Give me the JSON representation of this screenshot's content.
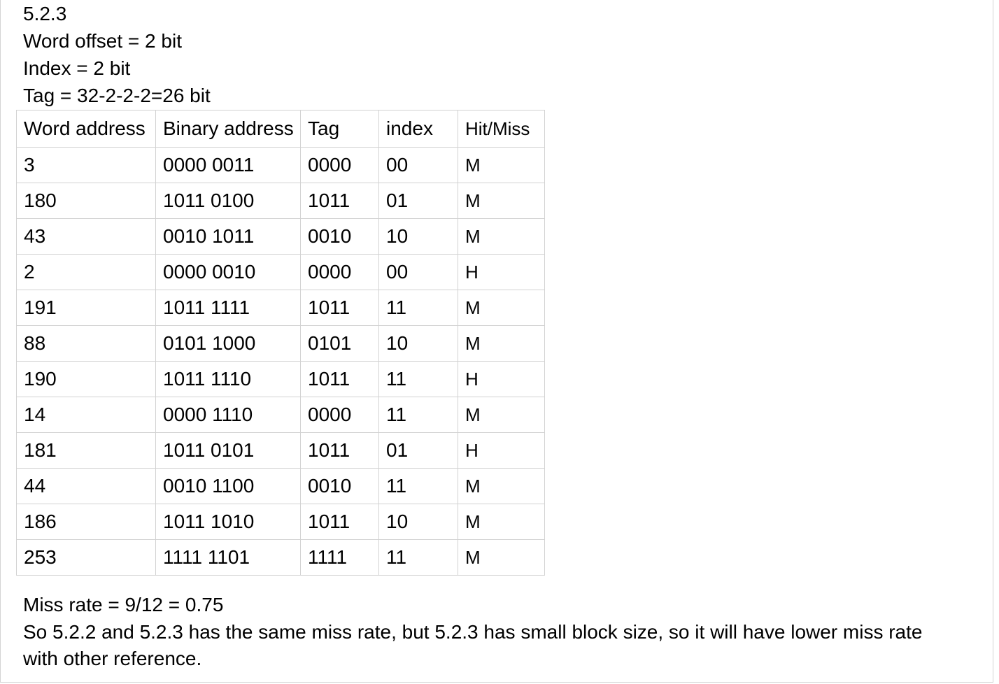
{
  "heading": {
    "section": "5.2.3",
    "word_offset": "Word offset = 2 bit",
    "index": "Index = 2 bit",
    "tag": "Tag = 32-2-2-2=26 bit"
  },
  "table": {
    "headers": [
      "Word address",
      "Binary address",
      "Tag",
      "index",
      "Hit/Miss"
    ],
    "rows": [
      [
        "3",
        "0000 0011",
        "0000",
        "00",
        "M"
      ],
      [
        "180",
        "1011 0100",
        "1011",
        "01",
        "M"
      ],
      [
        "43",
        "0010 1011",
        "0010",
        "10",
        "M"
      ],
      [
        "2",
        "0000 0010",
        "0000",
        "00",
        "H"
      ],
      [
        "191",
        "1011 1111",
        "1011",
        "11",
        "M"
      ],
      [
        "88",
        "0101 1000",
        "0101",
        "10",
        "M"
      ],
      [
        "190",
        "1011 1110",
        "1011",
        "11",
        "H"
      ],
      [
        "14",
        "0000 1110",
        "0000",
        "11",
        "M"
      ],
      [
        "181",
        "1011 0101",
        "1011",
        "01",
        "H"
      ],
      [
        "44",
        "0010 1100",
        "0010",
        "11",
        "M"
      ],
      [
        "186",
        "1011 1010",
        "1011",
        "10",
        "M"
      ],
      [
        "253",
        "1111 1101",
        "1111",
        "11",
        "M"
      ]
    ]
  },
  "footer": {
    "miss_rate": "Miss rate = 9/12 = 0.75",
    "conclusion_line1": "So 5.2.2 and 5.2.3 has the same miss rate, but 5.2.3 has small block size, so it will have lower miss rate",
    "conclusion_line2": "with other reference."
  }
}
